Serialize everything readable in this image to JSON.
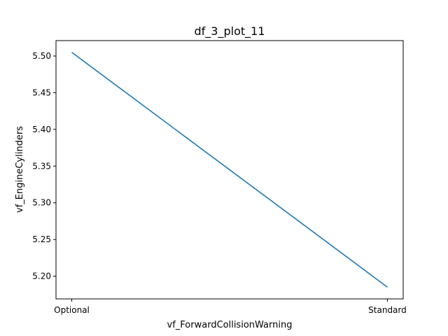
{
  "chart_data": {
    "type": "line",
    "title": "df_3_plot_11",
    "xlabel": "vf_ForwardCollisionWarning",
    "ylabel": "vf_EngineCylinders",
    "categories": [
      "Optional",
      "Standard"
    ],
    "series": [
      {
        "values": [
          5.505,
          5.185
        ],
        "color": "#1f77b4"
      }
    ],
    "ylim": [
      5.169,
      5.521
    ],
    "yticks": [
      {
        "value": 5.2,
        "label": "5.20"
      },
      {
        "value": 5.25,
        "label": "5.25"
      },
      {
        "value": 5.3,
        "label": "5.30"
      },
      {
        "value": 5.35,
        "label": "5.35"
      },
      {
        "value": 5.4,
        "label": "5.40"
      },
      {
        "value": 5.45,
        "label": "5.45"
      },
      {
        "value": 5.5,
        "label": "5.50"
      }
    ],
    "grid": false,
    "legend": "none"
  }
}
